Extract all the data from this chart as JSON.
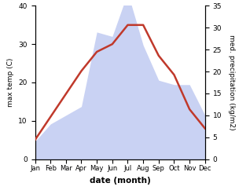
{
  "months": [
    "Jan",
    "Feb",
    "Mar",
    "Apr",
    "May",
    "Jun",
    "Jul",
    "Aug",
    "Sep",
    "Oct",
    "Nov",
    "Dec"
  ],
  "temp": [
    5,
    11,
    17,
    23,
    28,
    30,
    35,
    35,
    27,
    22,
    13,
    8
  ],
  "precip": [
    4,
    8,
    10,
    12,
    29,
    28,
    38,
    26,
    18,
    17,
    17,
    10
  ],
  "temp_color": "#c0392b",
  "precip_color": "#b3bfee",
  "temp_ylim": [
    0,
    40
  ],
  "precip_ylim": [
    0,
    35
  ],
  "temp_yticks": [
    0,
    10,
    20,
    30,
    40
  ],
  "precip_yticks": [
    0,
    5,
    10,
    15,
    20,
    25,
    30,
    35
  ],
  "xlabel": "date (month)",
  "ylabel_left": "max temp (C)",
  "ylabel_right": "med. precipitation (kg/m2)",
  "background_color": "#ffffff"
}
